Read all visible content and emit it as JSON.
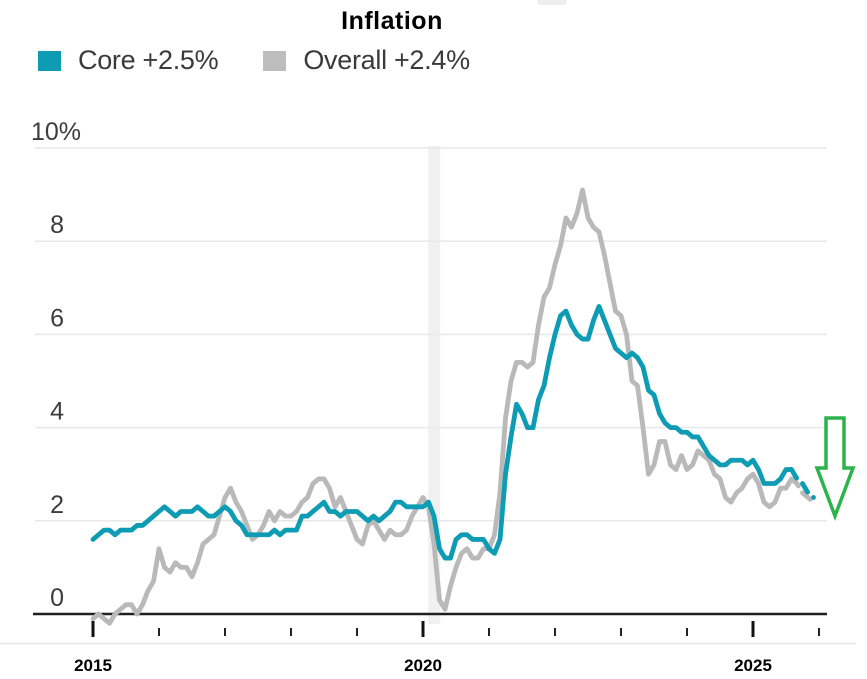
{
  "chart": {
    "title": "Inflation",
    "legend": [
      {
        "name": "core",
        "label": "Core +2.5%",
        "color": "#0e9bb4"
      },
      {
        "name": "overall",
        "label": "Overall +2.4%",
        "color": "#bdbdbd"
      }
    ]
  },
  "chart_data": {
    "type": "line",
    "title": "Inflation",
    "subtitle": "",
    "unit": "percent, year-over-year",
    "grid": "horizontal",
    "legend_position": "top-left",
    "ylim": [
      0,
      10
    ],
    "y_axis": {
      "ticks": [
        {
          "value": 0,
          "label": "0"
        },
        {
          "value": 2,
          "label": "2"
        },
        {
          "value": 4,
          "label": "4"
        },
        {
          "value": 6,
          "label": "6"
        },
        {
          "value": 8,
          "label": "8"
        },
        {
          "value": 10,
          "label": "10%"
        }
      ]
    },
    "x_axis": {
      "start_year": 2015,
      "end_year": 2026,
      "minor_ticks": [
        2016,
        2017,
        2018,
        2019,
        2021,
        2022,
        2023,
        2024,
        2026
      ],
      "major_ticks": [
        {
          "year": 2015,
          "label": "2015"
        },
        {
          "year": 2020,
          "label": "2020"
        },
        {
          "year": 2025,
          "label": "2025"
        }
      ]
    },
    "recession_band": {
      "from": 2020.08,
      "to": 2020.26,
      "color": "#f0f0f0"
    },
    "annotation": {
      "type": "down-arrow",
      "color": "#2cb34c"
    },
    "series": [
      {
        "name": "Core",
        "color": "#0e9bb4",
        "latest_label": "+2.5%",
        "dashed_from_index": 127,
        "values": [
          1.6,
          1.7,
          1.8,
          1.8,
          1.7,
          1.8,
          1.8,
          1.8,
          1.9,
          1.9,
          2.0,
          2.1,
          2.2,
          2.3,
          2.2,
          2.1,
          2.2,
          2.2,
          2.2,
          2.3,
          2.2,
          2.1,
          2.1,
          2.2,
          2.3,
          2.2,
          2.0,
          1.9,
          1.7,
          1.7,
          1.7,
          1.7,
          1.7,
          1.8,
          1.7,
          1.8,
          1.8,
          1.8,
          2.1,
          2.1,
          2.2,
          2.3,
          2.4,
          2.2,
          2.2,
          2.1,
          2.2,
          2.2,
          2.2,
          2.1,
          2.0,
          2.1,
          2.0,
          2.1,
          2.2,
          2.4,
          2.4,
          2.3,
          2.3,
          2.3,
          2.3,
          2.4,
          2.1,
          1.4,
          1.2,
          1.2,
          1.6,
          1.7,
          1.7,
          1.6,
          1.6,
          1.6,
          1.4,
          1.3,
          1.6,
          3.0,
          3.8,
          4.5,
          4.3,
          4.0,
          4.0,
          4.6,
          4.9,
          5.5,
          6.0,
          6.4,
          6.5,
          6.2,
          6.0,
          5.9,
          5.9,
          6.3,
          6.6,
          6.3,
          6.0,
          5.7,
          5.6,
          5.5,
          5.6,
          5.5,
          5.3,
          4.8,
          4.7,
          4.3,
          4.1,
          4.0,
          4.0,
          3.9,
          3.9,
          3.8,
          3.8,
          3.6,
          3.4,
          3.3,
          3.2,
          3.2,
          3.3,
          3.3,
          3.3,
          3.2,
          3.3,
          3.1,
          2.8,
          2.8,
          2.8,
          2.9,
          3.1,
          3.1,
          2.9,
          2.8,
          2.6,
          2.5
        ]
      },
      {
        "name": "Overall",
        "color": "#b9b9b9",
        "latest_label": "+2.4%",
        "dashed_from_index": 127,
        "values": [
          -0.1,
          0.0,
          -0.1,
          -0.2,
          0.0,
          0.1,
          0.2,
          0.2,
          0.0,
          0.2,
          0.5,
          0.7,
          1.4,
          1.0,
          0.9,
          1.1,
          1.0,
          1.0,
          0.8,
          1.1,
          1.5,
          1.6,
          1.7,
          2.1,
          2.5,
          2.7,
          2.4,
          2.2,
          1.9,
          1.6,
          1.7,
          1.9,
          2.2,
          2.0,
          2.2,
          2.1,
          2.1,
          2.2,
          2.4,
          2.5,
          2.8,
          2.9,
          2.9,
          2.7,
          2.3,
          2.5,
          2.2,
          1.9,
          1.6,
          1.5,
          1.9,
          2.0,
          1.8,
          1.6,
          1.8,
          1.7,
          1.7,
          1.8,
          2.1,
          2.3,
          2.5,
          2.3,
          1.5,
          0.3,
          0.1,
          0.6,
          1.0,
          1.3,
          1.4,
          1.2,
          1.2,
          1.4,
          1.4,
          1.7,
          2.6,
          4.2,
          5.0,
          5.4,
          5.4,
          5.3,
          5.4,
          6.2,
          6.8,
          7.0,
          7.5,
          7.9,
          8.5,
          8.3,
          8.6,
          9.1,
          8.5,
          8.3,
          8.2,
          7.7,
          7.1,
          6.5,
          6.4,
          6.0,
          5.0,
          4.9,
          4.0,
          3.0,
          3.2,
          3.7,
          3.7,
          3.2,
          3.1,
          3.4,
          3.1,
          3.2,
          3.5,
          3.4,
          3.3,
          3.0,
          2.9,
          2.5,
          2.4,
          2.6,
          2.7,
          2.9,
          3.0,
          2.8,
          2.4,
          2.3,
          2.4,
          2.7,
          2.7,
          2.9,
          2.8,
          2.6,
          2.5,
          2.4
        ]
      }
    ]
  }
}
